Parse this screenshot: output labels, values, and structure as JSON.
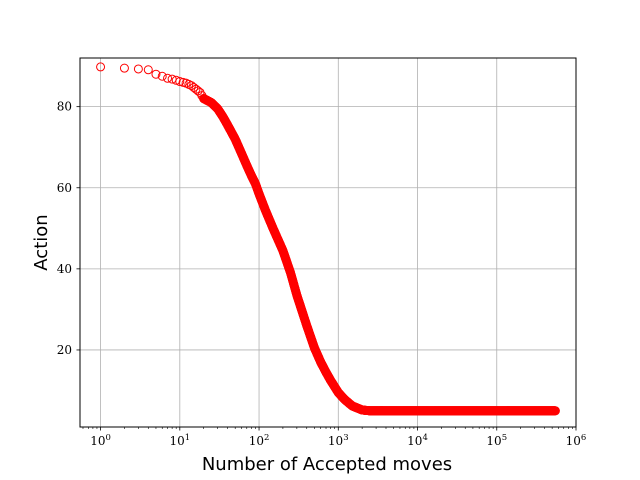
{
  "chart_data": {
    "type": "scatter",
    "title": "",
    "xlabel": "Number of Accepted moves",
    "ylabel": "Action",
    "x_scale": "log",
    "xlim": [
      0.55,
      1000000
    ],
    "ylim": [
      1,
      92
    ],
    "grid": true,
    "marker": "open-circle",
    "marker_color": "#ff0000",
    "x_ticks": [
      {
        "value": 1,
        "base": "10",
        "exp": "0"
      },
      {
        "value": 10,
        "base": "10",
        "exp": "1"
      },
      {
        "value": 100,
        "base": "10",
        "exp": "2"
      },
      {
        "value": 1000,
        "base": "10",
        "exp": "3"
      },
      {
        "value": 10000,
        "base": "10",
        "exp": "4"
      },
      {
        "value": 100000,
        "base": "10",
        "exp": "5"
      },
      {
        "value": 1000000,
        "base": "10",
        "exp": "6"
      }
    ],
    "y_ticks": [
      {
        "value": 20,
        "label": "20"
      },
      {
        "value": 40,
        "label": "40"
      },
      {
        "value": 60,
        "label": "60"
      },
      {
        "value": 80,
        "label": "80"
      }
    ],
    "curve_points": [
      [
        1,
        89.8
      ],
      [
        2,
        89.5
      ],
      [
        3,
        89.3
      ],
      [
        4,
        89.1
      ],
      [
        5,
        88.0
      ],
      [
        6,
        87.5
      ],
      [
        7,
        87.0
      ],
      [
        8,
        86.8
      ],
      [
        9,
        86.5
      ],
      [
        10,
        86.2
      ],
      [
        12,
        85.8
      ],
      [
        14,
        85.2
      ],
      [
        16,
        84.3
      ],
      [
        18,
        83.5
      ],
      [
        20,
        82.0
      ],
      [
        25,
        81.0
      ],
      [
        30,
        79.5
      ],
      [
        35,
        77.5
      ],
      [
        40,
        75.5
      ],
      [
        50,
        72.0
      ],
      [
        60,
        68.5
      ],
      [
        70,
        65.5
      ],
      [
        80,
        63.0
      ],
      [
        90,
        61.0
      ],
      [
        100,
        58.5
      ],
      [
        120,
        54.5
      ],
      [
        150,
        50.0
      ],
      [
        200,
        44.5
      ],
      [
        250,
        39.0
      ],
      [
        300,
        33.5
      ],
      [
        400,
        26.0
      ],
      [
        500,
        20.5
      ],
      [
        600,
        17.0
      ],
      [
        700,
        14.5
      ],
      [
        800,
        12.5
      ],
      [
        1000,
        9.5
      ],
      [
        1200,
        7.8
      ],
      [
        1500,
        6.2
      ],
      [
        2000,
        5.2
      ],
      [
        2500,
        5.0
      ],
      [
        3000,
        5.0
      ],
      [
        10000,
        5.0
      ],
      [
        100000,
        5.0
      ],
      [
        550000,
        5.0
      ]
    ]
  }
}
